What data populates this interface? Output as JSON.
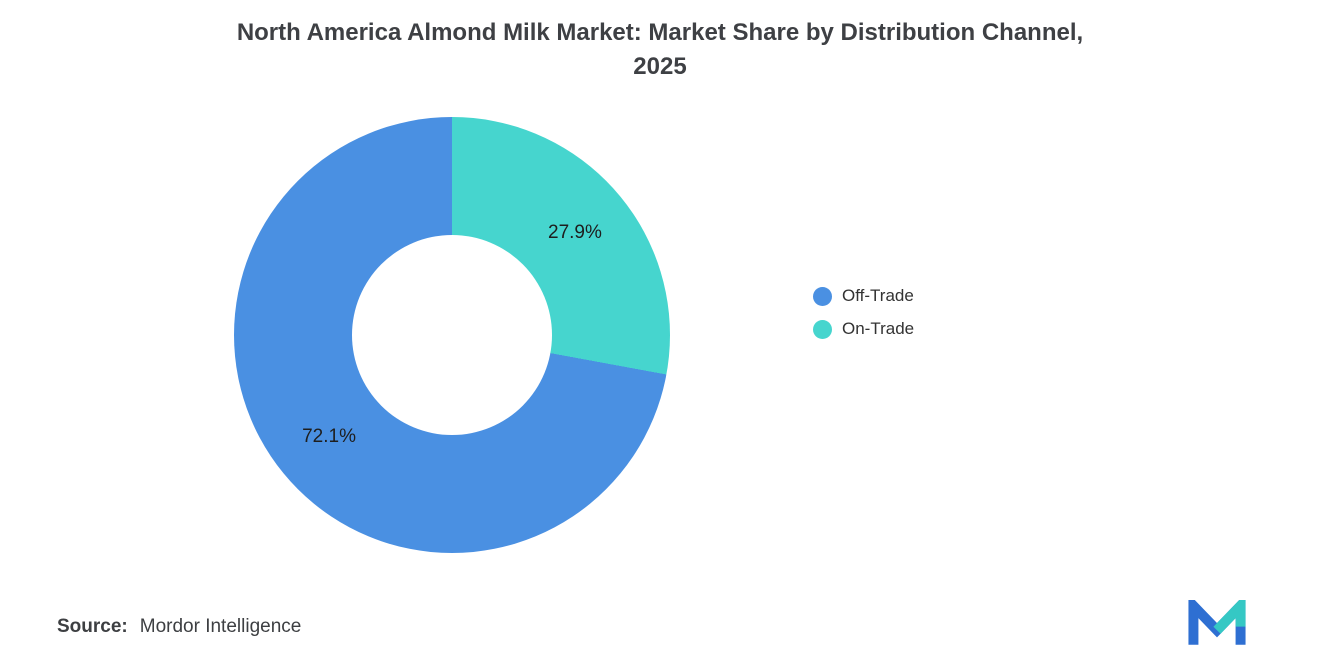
{
  "title": {
    "line1": "North America Almond Milk Market: Market Share by Distribution Channel,",
    "line2": "2025"
  },
  "chart_data": {
    "type": "pie",
    "donut": true,
    "title": "North America Almond Milk Market: Market Share by Distribution Channel, 2025",
    "categories": [
      "Off-Trade",
      "On-Trade"
    ],
    "values": [
      72.1,
      27.9
    ],
    "start_angle_deg": 0,
    "direction": "clockwise",
    "legend_position": "right",
    "slices": [
      {
        "name": "On-Trade",
        "value": 27.9,
        "label": "27.9%",
        "color": "#46D5CE"
      },
      {
        "name": "Off-Trade",
        "value": 72.1,
        "label": "72.1%",
        "color": "#4A90E2"
      }
    ]
  },
  "legend": {
    "items": [
      {
        "label": "Off-Trade",
        "color": "#4A90E2"
      },
      {
        "label": "On-Trade",
        "color": "#46D5CE"
      }
    ]
  },
  "source": {
    "label": "Source:",
    "value": "Mordor Intelligence"
  },
  "logo": {
    "name": "mordor-intelligence-logo",
    "primary_color": "#2E6FD2",
    "accent_color": "#35C8C4"
  }
}
